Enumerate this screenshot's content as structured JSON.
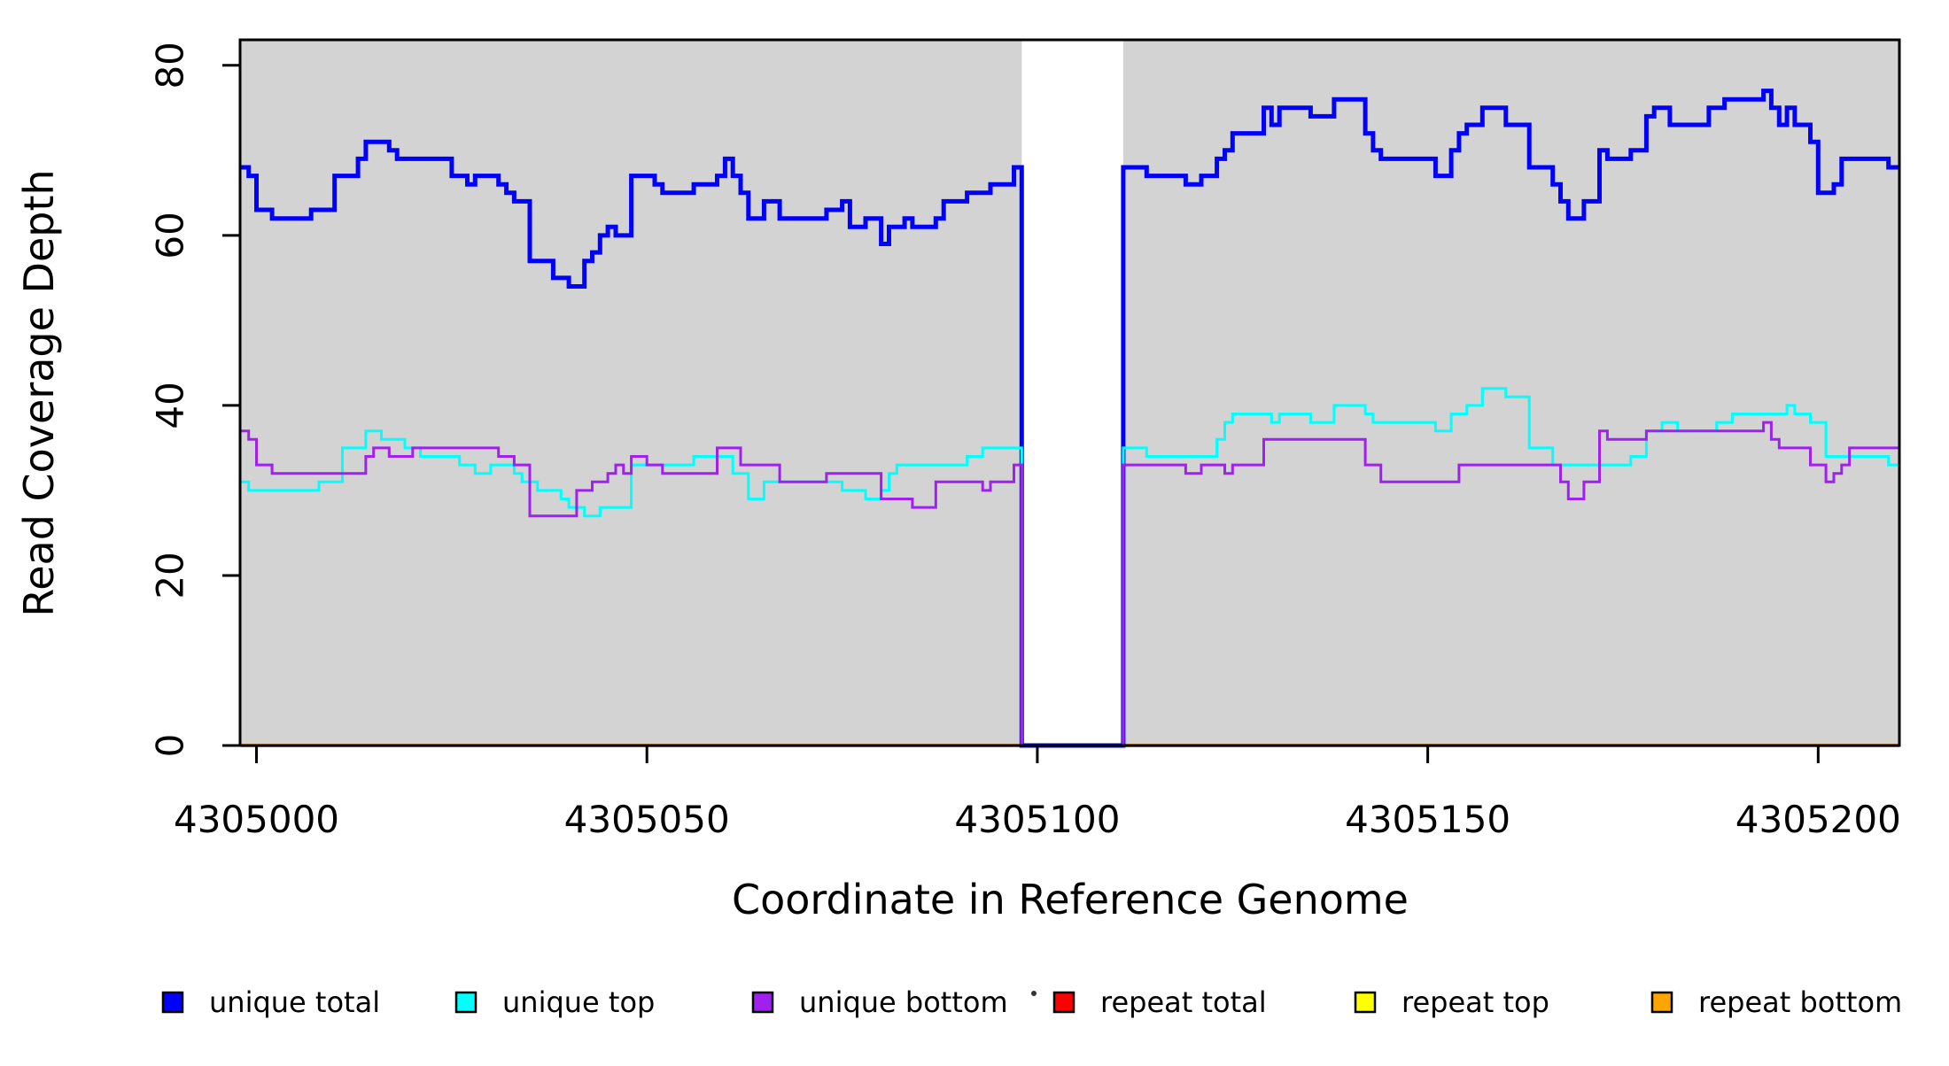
{
  "chart_data": {
    "type": "line",
    "subtype": "step",
    "title": "",
    "xlabel": "Coordinate in Reference Genome",
    "ylabel": "Read Coverage Depth",
    "xlim": [
      4304997.9,
      4305210.4
    ],
    "ylim": [
      0,
      83
    ],
    "x_ticks": [
      4305000,
      4305050,
      4305100,
      4305150,
      4305200
    ],
    "y_ticks": [
      0,
      20,
      40,
      60,
      80
    ],
    "grid": false,
    "legend_position": "bottom",
    "background_color": "#ffffff",
    "shading_color": "#d3d3d3",
    "shaded_regions": [
      [
        4304997.9,
        4305098
      ],
      [
        4305111,
        4305210.4
      ]
    ],
    "gap_region": [
      4305098,
      4305111
    ],
    "series": [
      {
        "name": "unique total",
        "color": "#0000ff",
        "line_width": 5,
        "steps": [
          [
            4304998,
            68
          ],
          [
            4304999,
            67
          ],
          [
            4305000,
            63
          ],
          [
            4305002,
            62
          ],
          [
            4305007,
            63
          ],
          [
            4305010,
            67
          ],
          [
            4305013,
            69
          ],
          [
            4305014,
            71
          ],
          [
            4305017,
            70
          ],
          [
            4305018,
            69
          ],
          [
            4305025,
            67
          ],
          [
            4305027,
            66
          ],
          [
            4305028,
            67
          ],
          [
            4305031,
            66
          ],
          [
            4305032,
            65
          ],
          [
            4305033,
            64
          ],
          [
            4305035,
            57
          ],
          [
            4305038,
            55
          ],
          [
            4305040,
            54
          ],
          [
            4305042,
            57
          ],
          [
            4305043,
            58
          ],
          [
            4305044,
            60
          ],
          [
            4305045,
            61
          ],
          [
            4305046,
            60
          ],
          [
            4305048,
            67
          ],
          [
            4305051,
            66
          ],
          [
            4305052,
            65
          ],
          [
            4305056,
            66
          ],
          [
            4305059,
            67
          ],
          [
            4305060,
            69
          ],
          [
            4305061,
            67
          ],
          [
            4305062,
            65
          ],
          [
            4305063,
            62
          ],
          [
            4305065,
            64
          ],
          [
            4305067,
            62
          ],
          [
            4305073,
            63
          ],
          [
            4305075,
            64
          ],
          [
            4305076,
            61
          ],
          [
            4305078,
            62
          ],
          [
            4305080,
            59
          ],
          [
            4305081,
            61
          ],
          [
            4305083,
            62
          ],
          [
            4305084,
            61
          ],
          [
            4305087,
            62
          ],
          [
            4305088,
            64
          ],
          [
            4305091,
            65
          ],
          [
            4305094,
            66
          ],
          [
            4305097,
            68
          ],
          [
            4305098,
            0
          ],
          [
            4305111,
            68
          ],
          [
            4305114,
            67
          ],
          [
            4305119,
            66
          ],
          [
            4305121,
            67
          ],
          [
            4305123,
            69
          ],
          [
            4305124,
            70
          ],
          [
            4305125,
            72
          ],
          [
            4305129,
            75
          ],
          [
            4305130,
            73
          ],
          [
            4305131,
            75
          ],
          [
            4305135,
            74
          ],
          [
            4305138,
            76
          ],
          [
            4305142,
            72
          ],
          [
            4305143,
            70
          ],
          [
            4305144,
            69
          ],
          [
            4305151,
            67
          ],
          [
            4305153,
            70
          ],
          [
            4305154,
            72
          ],
          [
            4305155,
            73
          ],
          [
            4305157,
            75
          ],
          [
            4305160,
            73
          ],
          [
            4305163,
            68
          ],
          [
            4305166,
            66
          ],
          [
            4305167,
            64
          ],
          [
            4305168,
            62
          ],
          [
            4305170,
            64
          ],
          [
            4305172,
            70
          ],
          [
            4305173,
            69
          ],
          [
            4305176,
            70
          ],
          [
            4305178,
            74
          ],
          [
            4305179,
            75
          ],
          [
            4305181,
            73
          ],
          [
            4305186,
            75
          ],
          [
            4305188,
            76
          ],
          [
            4305193,
            77
          ],
          [
            4305194,
            75
          ],
          [
            4305195,
            73
          ],
          [
            4305196,
            75
          ],
          [
            4305197,
            73
          ],
          [
            4305199,
            71
          ],
          [
            4305200,
            65
          ],
          [
            4305202,
            66
          ],
          [
            4305203,
            69
          ],
          [
            4305209,
            68
          ]
        ]
      },
      {
        "name": "unique top",
        "color": "#00ffff",
        "line_width": 3,
        "steps": [
          [
            4304998,
            31
          ],
          [
            4304999,
            30
          ],
          [
            4305008,
            31
          ],
          [
            4305011,
            35
          ],
          [
            4305014,
            37
          ],
          [
            4305016,
            36
          ],
          [
            4305019,
            35
          ],
          [
            4305021,
            34
          ],
          [
            4305026,
            33
          ],
          [
            4305028,
            32
          ],
          [
            4305030,
            33
          ],
          [
            4305033,
            32
          ],
          [
            4305034,
            31
          ],
          [
            4305036,
            30
          ],
          [
            4305039,
            29
          ],
          [
            4305040,
            28
          ],
          [
            4305042,
            27
          ],
          [
            4305044,
            28
          ],
          [
            4305048,
            33
          ],
          [
            4305056,
            34
          ],
          [
            4305061,
            32
          ],
          [
            4305063,
            29
          ],
          [
            4305065,
            31
          ],
          [
            4305075,
            30
          ],
          [
            4305078,
            29
          ],
          [
            4305080,
            30
          ],
          [
            4305081,
            32
          ],
          [
            4305082,
            33
          ],
          [
            4305091,
            34
          ],
          [
            4305093,
            35
          ],
          [
            4305098,
            0
          ],
          [
            4305111,
            35
          ],
          [
            4305114,
            34
          ],
          [
            4305123,
            36
          ],
          [
            4305124,
            38
          ],
          [
            4305125,
            39
          ],
          [
            4305130,
            38
          ],
          [
            4305131,
            39
          ],
          [
            4305135,
            38
          ],
          [
            4305138,
            40
          ],
          [
            4305142,
            39
          ],
          [
            4305143,
            38
          ],
          [
            4305151,
            37
          ],
          [
            4305153,
            39
          ],
          [
            4305155,
            40
          ],
          [
            4305157,
            42
          ],
          [
            4305160,
            41
          ],
          [
            4305163,
            35
          ],
          [
            4305166,
            33
          ],
          [
            4305176,
            34
          ],
          [
            4305178,
            37
          ],
          [
            4305180,
            38
          ],
          [
            4305182,
            37
          ],
          [
            4305187,
            38
          ],
          [
            4305189,
            39
          ],
          [
            4305196,
            40
          ],
          [
            4305197,
            39
          ],
          [
            4305199,
            38
          ],
          [
            4305201,
            34
          ],
          [
            4305209,
            33
          ]
        ]
      },
      {
        "name": "unique bottom",
        "color": "#a020f0",
        "line_width": 3,
        "steps": [
          [
            4304998,
            37
          ],
          [
            4304999,
            36
          ],
          [
            4305000,
            33
          ],
          [
            4305002,
            32
          ],
          [
            4305014,
            34
          ],
          [
            4305015,
            35
          ],
          [
            4305017,
            34
          ],
          [
            4305020,
            35
          ],
          [
            4305031,
            34
          ],
          [
            4305033,
            33
          ],
          [
            4305035,
            27
          ],
          [
            4305041,
            30
          ],
          [
            4305043,
            31
          ],
          [
            4305045,
            32
          ],
          [
            4305046,
            33
          ],
          [
            4305047,
            32
          ],
          [
            4305048,
            34
          ],
          [
            4305050,
            33
          ],
          [
            4305052,
            32
          ],
          [
            4305059,
            35
          ],
          [
            4305062,
            33
          ],
          [
            4305067,
            31
          ],
          [
            4305073,
            32
          ],
          [
            4305080,
            29
          ],
          [
            4305084,
            28
          ],
          [
            4305087,
            31
          ],
          [
            4305093,
            30
          ],
          [
            4305094,
            31
          ],
          [
            4305097,
            33
          ],
          [
            4305098,
            0
          ],
          [
            4305111,
            33
          ],
          [
            4305119,
            32
          ],
          [
            4305121,
            33
          ],
          [
            4305124,
            32
          ],
          [
            4305125,
            33
          ],
          [
            4305129,
            36
          ],
          [
            4305142,
            33
          ],
          [
            4305144,
            31
          ],
          [
            4305154,
            33
          ],
          [
            4305167,
            31
          ],
          [
            4305168,
            29
          ],
          [
            4305170,
            31
          ],
          [
            4305172,
            37
          ],
          [
            4305173,
            36
          ],
          [
            4305178,
            37
          ],
          [
            4305193,
            38
          ],
          [
            4305194,
            36
          ],
          [
            4305195,
            35
          ],
          [
            4305199,
            33
          ],
          [
            4305201,
            31
          ],
          [
            4305202,
            32
          ],
          [
            4305203,
            33
          ],
          [
            4305204,
            35
          ]
        ]
      },
      {
        "name": "repeat total",
        "color": "#ff0000",
        "line_width": 3,
        "steps": [
          [
            4304998,
            0
          ]
        ]
      },
      {
        "name": "repeat top",
        "color": "#ffff00",
        "line_width": 3,
        "steps": [
          [
            4304998,
            0
          ]
        ]
      },
      {
        "name": "repeat bottom",
        "color": "#ffa500",
        "line_width": 4,
        "steps": [
          [
            4304998,
            0
          ]
        ]
      }
    ]
  }
}
